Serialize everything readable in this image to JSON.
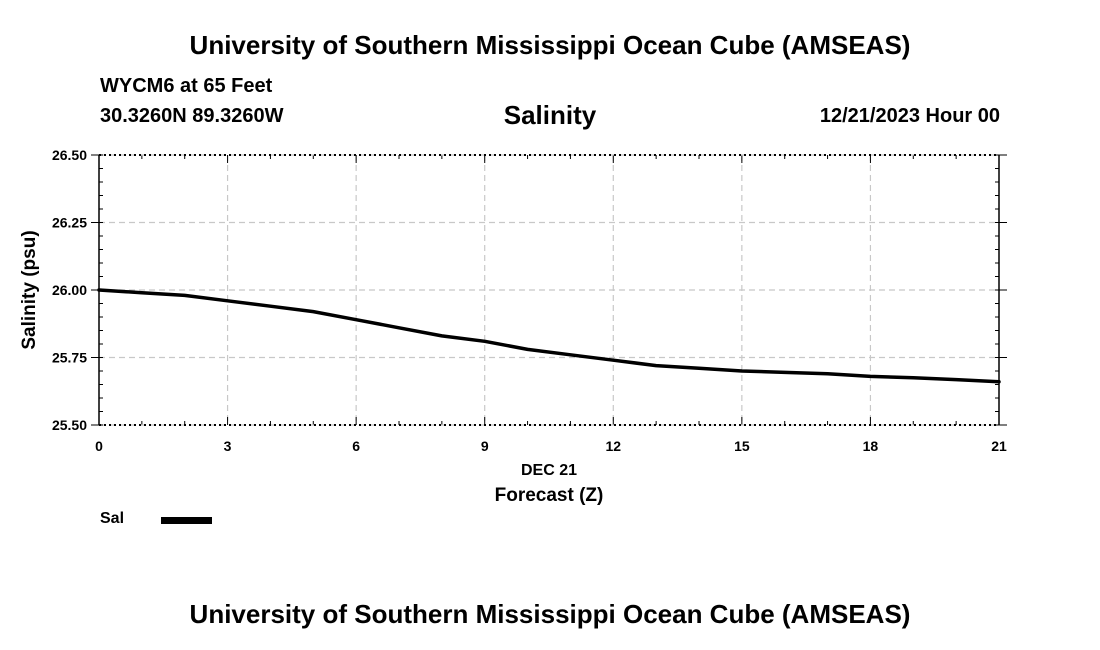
{
  "header": {
    "title": "University of Southern Mississippi Ocean Cube (AMSEAS)",
    "station": "WYCM6 at 65 Feet",
    "coordinates": "30.3260N  89.3260W",
    "variable_title": "Salinity",
    "datetime": "12/21/2023 Hour 00"
  },
  "footer": {
    "title": "University of Southern Mississippi Ocean Cube (AMSEAS)"
  },
  "legend": {
    "label": "Sal",
    "color": "#000000"
  },
  "chart_data": {
    "type": "line",
    "title": "Salinity",
    "xlabel": "Forecast (Z)",
    "xlabel_date": "DEC 21",
    "ylabel": "Salinity (psu)",
    "xlim": [
      0,
      21
    ],
    "ylim": [
      25.5,
      26.5
    ],
    "x_ticks": [
      "0",
      "3",
      "6",
      "9",
      "12",
      "15",
      "18",
      "21"
    ],
    "y_ticks": [
      "25.50",
      "25.75",
      "26.00",
      "26.25",
      "26.50"
    ],
    "grid": true,
    "series": [
      {
        "name": "Sal",
        "color": "#000000",
        "x": [
          0,
          1,
          2,
          3,
          4,
          5,
          6,
          7,
          8,
          9,
          10,
          11,
          12,
          13,
          14,
          15,
          16,
          17,
          18,
          19,
          20,
          21
        ],
        "values": [
          26.0,
          25.99,
          25.98,
          25.96,
          25.94,
          25.92,
          25.89,
          25.86,
          25.83,
          25.81,
          25.78,
          25.76,
          25.74,
          25.72,
          25.71,
          25.7,
          25.695,
          25.69,
          25.68,
          25.675,
          25.668,
          25.66
        ]
      }
    ]
  }
}
